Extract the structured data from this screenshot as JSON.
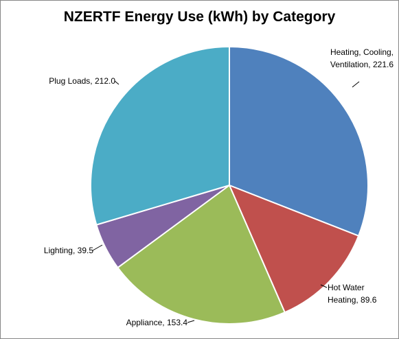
{
  "chart_data": {
    "type": "pie",
    "title": "NZERTF Energy Use (kWh) by Category",
    "categories": [
      "Heating, Cooling, Ventilation",
      "Hot Water Heating",
      "Appliance",
      "Lighting",
      "Plug Loads"
    ],
    "values": [
      221.6,
      89.6,
      153.4,
      39.5,
      212.0
    ],
    "value_labels": [
      "221.6",
      "89.6",
      "153.4",
      "39.5",
      "212.0"
    ],
    "colors": [
      "#4f81bd",
      "#c0504d",
      "#9bbb59",
      "#8064a2",
      "#4bacc6"
    ]
  }
}
